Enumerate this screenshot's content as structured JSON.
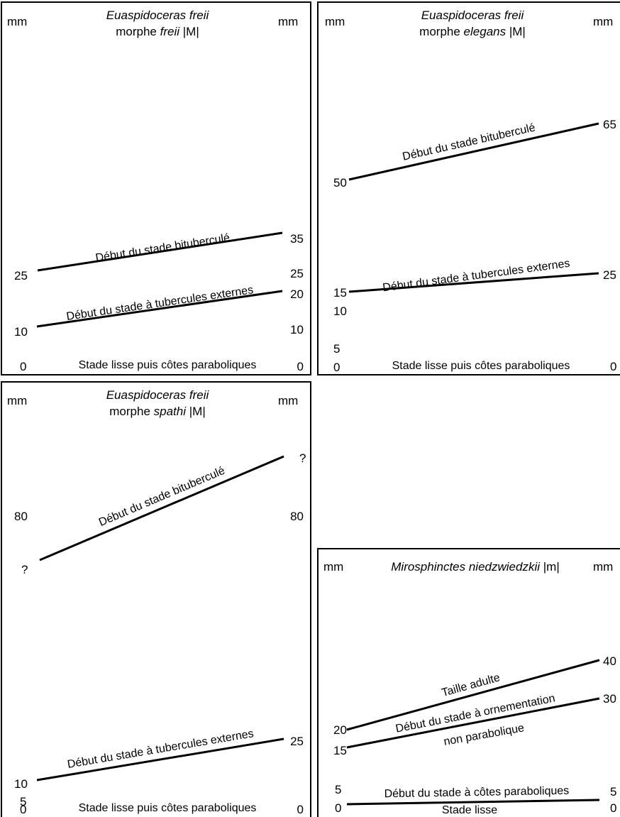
{
  "chart_data": [
    {
      "type": "line",
      "title_italic": "Euaspidoceras freii",
      "subtitle_prefix": "morphe ",
      "subtitle_italic": "freii",
      "subtitle_suffix": " |M|",
      "unit_left": "mm",
      "unit_right": "mm",
      "left_ticks": [
        "25",
        "10",
        "0"
      ],
      "right_ticks": [
        "35",
        "25",
        "20",
        "10",
        "0"
      ],
      "lines": [
        {
          "label": "Début du stade bituberculé",
          "start": 25,
          "end": 35
        },
        {
          "label": "Début du stade à tubercules externes",
          "start": 10,
          "end": 20
        }
      ],
      "base_label": "Stade lisse puis côtes paraboliques"
    },
    {
      "type": "line",
      "title_italic": "Euaspidoceras freii",
      "subtitle_prefix": "morphe ",
      "subtitle_italic": "elegans",
      "subtitle_suffix": " |M|",
      "unit_left": "mm",
      "unit_right": "mm",
      "left_ticks": [
        "50",
        "15",
        "10",
        "5",
        "0"
      ],
      "right_ticks": [
        "65",
        "25",
        "0"
      ],
      "lines": [
        {
          "label": "Début du stade bituberculé",
          "start": 50,
          "end": 65
        },
        {
          "label": "Début du stade à tubercules externes",
          "start": 15,
          "end": 25
        }
      ],
      "base_label": "Stade lisse puis côtes paraboliques"
    },
    {
      "type": "line",
      "title_italic": "Euaspidoceras freii",
      "subtitle_prefix": "morphe ",
      "subtitle_italic": "spathi",
      "subtitle_suffix": " |M|",
      "unit_left": "mm",
      "unit_right": "mm",
      "left_ticks": [
        "80",
        "?",
        "10",
        "5",
        "0"
      ],
      "right_ticks": [
        "?",
        "80",
        "25",
        "0"
      ],
      "lines": [
        {
          "label": "Début du stade bituberculé",
          "start": "?",
          "end": "?"
        },
        {
          "label": "Début du stade à tubercules externes",
          "start": 10,
          "end": 25
        }
      ],
      "base_label": "Stade lisse puis côtes paraboliques"
    },
    {
      "type": "line",
      "title_italic": "Mirosphinctes niedzwiedzkii",
      "title_suffix": " |m|",
      "unit_left": "mm",
      "unit_right": "mm",
      "left_ticks": [
        "20",
        "15",
        "5",
        "0"
      ],
      "right_ticks": [
        "40",
        "30",
        "5",
        "0"
      ],
      "lines": [
        {
          "label": "Taille adulte",
          "start": 20,
          "end": 40
        },
        {
          "label": "Début du stade à ornementation",
          "label2": "non parabolique",
          "start": 15,
          "end": 30
        },
        {
          "label": "Début du stade à côtes paraboliques",
          "start": 0,
          "end": 5
        }
      ],
      "base_label": "Stade lisse"
    }
  ]
}
